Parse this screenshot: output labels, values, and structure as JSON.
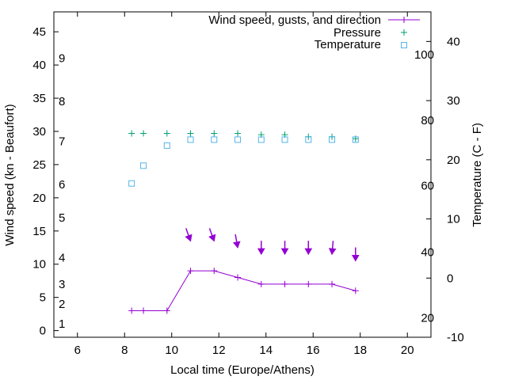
{
  "chart_data": {
    "type": "line",
    "xlabel": "Local time (Europe/Athens)",
    "ylabel": "Wind speed (kn - Beaufort)",
    "y2label": "Temperature (C - F)",
    "xlim": [
      5,
      21
    ],
    "ylim": [
      -1,
      48
    ],
    "y2lim": [
      -10,
      45
    ],
    "x_ticks": [
      6,
      8,
      10,
      12,
      14,
      16,
      18,
      20
    ],
    "y_ticks": [
      0,
      5,
      10,
      15,
      20,
      25,
      30,
      35,
      40,
      45
    ],
    "y2_ticks": [
      -10,
      0,
      10,
      20,
      30,
      40
    ],
    "beaufort_labels": [
      {
        "label": "1",
        "at_kn": 1
      },
      {
        "label": "2",
        "at_kn": 4
      },
      {
        "label": "3",
        "at_kn": 7
      },
      {
        "label": "4",
        "at_kn": 11
      },
      {
        "label": "5",
        "at_kn": 17
      },
      {
        "label": "6",
        "at_kn": 22
      },
      {
        "label": "7",
        "at_kn": 28.5
      },
      {
        "label": "8",
        "at_kn": 34.5
      },
      {
        "label": "9",
        "at_kn": 41
      }
    ],
    "fahrenheit_labels": [
      {
        "label": "20",
        "at_c": -6.7
      },
      {
        "label": "40",
        "at_c": 4.4
      },
      {
        "label": "60",
        "at_c": 15.6
      },
      {
        "label": "80",
        "at_c": 26.7
      },
      {
        "label": "100",
        "at_c": 37.8
      }
    ],
    "legend": {
      "position": "top-right",
      "entries": [
        {
          "label": "Wind speed, gusts, and direction",
          "color": "#9400d3",
          "marker": "line-plus"
        },
        {
          "label": "Pressure",
          "color": "#009e73",
          "marker": "plus"
        },
        {
          "label": "Temperature",
          "color": "#56b4e9",
          "marker": "square"
        }
      ]
    },
    "series": [
      {
        "name": "Wind speed, gusts, and direction",
        "color": "#9400d3",
        "x": [
          8.3,
          8.8,
          9.8,
          10.8,
          11.8,
          12.8,
          13.8,
          14.8,
          15.8,
          16.8,
          17.8
        ],
        "y": [
          3,
          3,
          3,
          9,
          9,
          8,
          7,
          7,
          7,
          7,
          6
        ]
      },
      {
        "name": "Pressure",
        "color": "#009e73",
        "x": [
          8.3,
          8.8,
          9.8,
          10.8,
          11.8,
          12.8,
          13.8,
          14.8,
          15.8,
          16.8,
          17.8
        ],
        "y": [
          29.7,
          29.7,
          29.7,
          29.7,
          29.7,
          29.7,
          29.5,
          29.5,
          29.2,
          29.2,
          28.9
        ]
      },
      {
        "name": "Temperature",
        "color": "#56b4e9",
        "axis": "y2",
        "x": [
          8.3,
          8.8,
          9.8,
          10.8,
          11.8,
          12.8,
          13.8,
          14.8,
          15.8,
          16.8,
          17.8
        ],
        "y": [
          16,
          19,
          22.4,
          23.4,
          23.4,
          23.4,
          23.4,
          23.4,
          23.4,
          23.4,
          23.4
        ]
      }
    ],
    "wind_arrows": {
      "color": "#9400d3",
      "x": [
        10.8,
        11.8,
        12.8,
        13.8,
        14.8,
        15.8,
        16.8,
        17.8
      ],
      "tip_y": [
        13.5,
        13.5,
        12.5,
        11.5,
        11.5,
        11.5,
        11.5,
        10.5
      ],
      "direction_deg": [
        200,
        200,
        190,
        180,
        180,
        180,
        175,
        180
      ]
    }
  }
}
